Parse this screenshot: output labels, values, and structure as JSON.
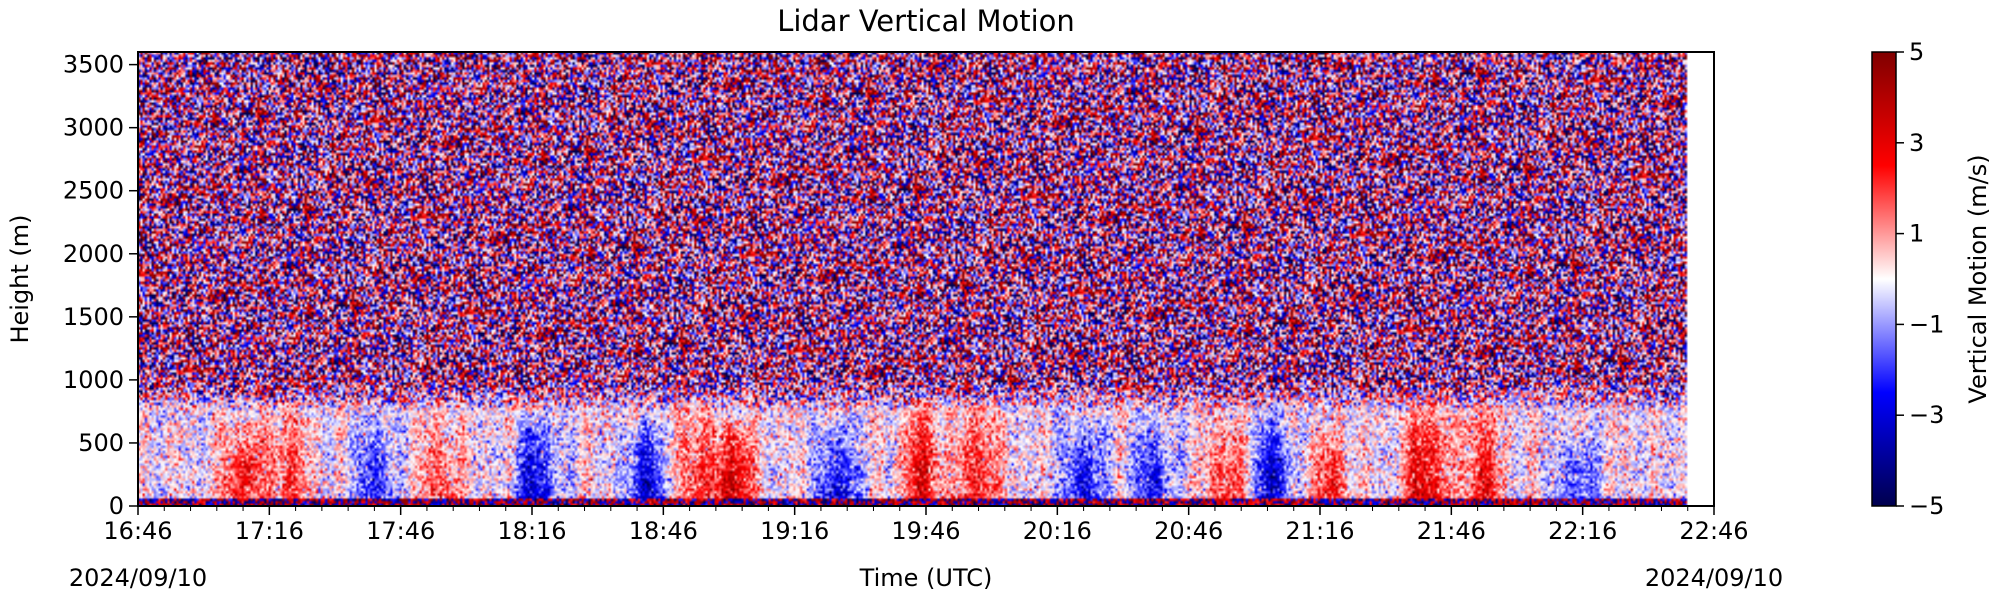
{
  "chart_data": {
    "type": "heatmap",
    "title": "Lidar Vertical Motion",
    "xlabel": "Time (UTC)",
    "ylabel": "Height (m)",
    "date_label_left": "2024/09/10",
    "date_label_right": "2024/09/10",
    "x_tick_labels": [
      "16:46",
      "17:16",
      "17:46",
      "18:16",
      "18:46",
      "19:16",
      "19:46",
      "20:16",
      "20:46",
      "21:16",
      "21:46",
      "22:16",
      "22:46"
    ],
    "y_ticks": [
      0,
      500,
      1000,
      1500,
      2000,
      2500,
      3000,
      3500
    ],
    "y_tick_labels": [
      "0",
      "500",
      "1000",
      "1500",
      "2000",
      "2500",
      "3000",
      "3500"
    ],
    "xlim": [
      "16:46",
      "22:46"
    ],
    "ylim": [
      0,
      3600
    ],
    "data_extent_x": [
      "16:46",
      "22:40"
    ],
    "colorbar": {
      "label": "Vertical Motion (m/s)",
      "colormap": "seismic",
      "range": [
        -5,
        5
      ],
      "ticks": [
        5,
        3,
        1,
        -1,
        -3,
        -5
      ],
      "tick_labels": [
        "5",
        "3",
        "1",
        "−1",
        "−3",
        "−5"
      ],
      "colors": [
        "#00004d",
        "#0000ff",
        "#ffffff",
        "#ff0000",
        "#800000"
      ]
    },
    "description": {
      "noise_above_m": 1000,
      "boundary_layer_top_m": 750,
      "lowest_gate_m": 50,
      "updrafts": [
        {
          "time": "17:10",
          "height_max_m": 700,
          "value": 2.5
        },
        {
          "time": "17:20",
          "height_max_m": 900,
          "value": 2.0
        },
        {
          "time": "17:55",
          "height_max_m": 800,
          "value": 1.8
        },
        {
          "time": "18:53",
          "height_max_m": 900,
          "value": 2.0
        },
        {
          "time": "19:02",
          "height_max_m": 700,
          "value": 3.5
        },
        {
          "time": "19:45",
          "height_max_m": 900,
          "value": 2.8
        },
        {
          "time": "19:58",
          "height_max_m": 900,
          "value": 2.5
        },
        {
          "time": "20:55",
          "height_max_m": 750,
          "value": 2.2
        },
        {
          "time": "21:18",
          "height_max_m": 650,
          "value": 2.2
        },
        {
          "time": "21:40",
          "height_max_m": 950,
          "value": 3.2
        },
        {
          "time": "21:53",
          "height_max_m": 850,
          "value": 2.5
        }
      ],
      "downdrafts": [
        {
          "time": "17:40",
          "height_max_m": 750,
          "value": -2.2
        },
        {
          "time": "18:17",
          "height_max_m": 750,
          "value": -3.0
        },
        {
          "time": "18:42",
          "height_max_m": 700,
          "value": -3.0
        },
        {
          "time": "19:26",
          "height_max_m": 700,
          "value": -2.8
        },
        {
          "time": "20:22",
          "height_max_m": 700,
          "value": -2.8
        },
        {
          "time": "20:38",
          "height_max_m": 700,
          "value": -2.5
        },
        {
          "time": "21:05",
          "height_max_m": 750,
          "value": -3.2
        },
        {
          "time": "22:15",
          "height_max_m": 600,
          "value": -2.0
        }
      ]
    }
  }
}
